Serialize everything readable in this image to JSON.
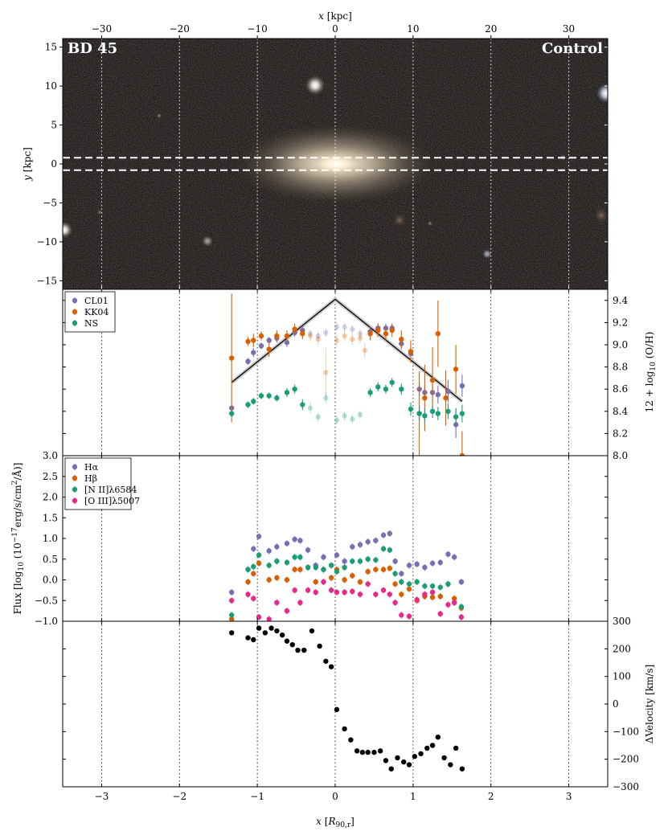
{
  "image_panel": {
    "left_label": "BD 45",
    "right_label": "Control",
    "top_axis_label": "x [kpc]",
    "left_axis_label": "y [kpc]",
    "top_ticks": [
      "−30",
      "−20",
      "−10",
      "0",
      "10",
      "20",
      "30"
    ],
    "top_tick_values": [
      -30,
      -20,
      -10,
      0,
      10,
      20,
      30
    ],
    "left_ticks": [
      "15",
      "10",
      "5",
      "0",
      "−5",
      "−10",
      "−15"
    ],
    "left_tick_values": [
      15,
      10,
      5,
      0,
      -5,
      -10,
      -15
    ],
    "xlim_kpc": [
      -35,
      35
    ],
    "ylim_kpc": [
      -16.1,
      16.1
    ],
    "slit_y_kpc": [
      0.8,
      -0.8
    ]
  },
  "chart_data": [
    {
      "type": "scatter",
      "panel": "metallicity",
      "ylabel": "12 + log10(O/H)",
      "ylim": [
        8.0,
        9.5
      ],
      "yticks": [
        8.0,
        8.2,
        8.4,
        8.6,
        8.8,
        9.0,
        9.2,
        9.4
      ],
      "ytick_labels": [
        "8.0",
        "8.2",
        "8.4",
        "8.6",
        "8.8",
        "9.0",
        "9.2",
        "9.4"
      ],
      "series": [
        {
          "name": "CL01",
          "color": "#7570b3",
          "x": [
            -1.33,
            -1.12,
            -1.05,
            -0.95,
            -0.85,
            -0.75,
            -0.62,
            -0.52,
            -0.42,
            -0.32,
            -0.22,
            -0.12,
            0.02,
            0.12,
            0.22,
            0.32,
            0.45,
            0.55,
            0.65,
            0.73,
            0.85,
            0.97,
            1.08,
            1.15,
            1.25,
            1.32,
            1.45,
            1.55,
            1.63
          ],
          "y": [
            8.43,
            8.85,
            8.93,
            8.99,
            9.04,
            9.06,
            9.02,
            9.11,
            9.13,
            9.1,
            9.08,
            9.11,
            9.16,
            9.16,
            9.14,
            9.1,
            9.12,
            9.15,
            9.15,
            9.15,
            9.01,
            8.92,
            8.6,
            8.57,
            8.57,
            8.55,
            8.58,
            8.28,
            8.63
          ],
          "err": [
            0.03,
            0.03,
            0.04,
            0.03,
            0.03,
            0.04,
            0.04,
            0.04,
            0.04,
            0.03,
            0.04,
            0.04,
            0.04,
            0.04,
            0.04,
            0.04,
            0.04,
            0.04,
            0.04,
            0.04,
            0.05,
            0.05,
            0.06,
            0.07,
            0.08,
            0.08,
            0.1,
            0.12,
            0.1
          ]
        },
        {
          "name": "KK04",
          "color": "#d95f02",
          "x": [
            -1.33,
            -1.12,
            -1.05,
            -0.95,
            -0.85,
            -0.75,
            -0.62,
            -0.52,
            -0.42,
            -0.32,
            -0.22,
            -0.12,
            0.02,
            0.12,
            0.22,
            0.32,
            0.38,
            0.45,
            0.55,
            0.65,
            0.73,
            0.85,
            0.97,
            1.08,
            1.15,
            1.25,
            1.32,
            1.42,
            1.55,
            1.63
          ],
          "y": [
            8.88,
            9.03,
            9.04,
            9.08,
            8.96,
            9.08,
            9.08,
            9.14,
            9.1,
            9.08,
            9.05,
            8.75,
            9.04,
            9.08,
            9.05,
            9.06,
            8.95,
            9.1,
            9.13,
            9.1,
            9.13,
            9.05,
            8.94,
            8.38,
            8.52,
            8.68,
            9.1,
            8.52,
            8.78,
            8.0
          ],
          "err": [
            0.58,
            0.04,
            0.06,
            0.04,
            0.07,
            0.05,
            0.05,
            0.05,
            0.05,
            0.05,
            0.05,
            0.22,
            0.05,
            0.05,
            0.05,
            0.05,
            0.07,
            0.06,
            0.06,
            0.06,
            0.06,
            0.08,
            0.1,
            0.38,
            0.3,
            0.3,
            0.3,
            0.25,
            0.22,
            0.22
          ]
        },
        {
          "name": "NS",
          "color": "#1b9e77",
          "x": [
            -1.33,
            -1.12,
            -1.05,
            -0.95,
            -0.85,
            -0.75,
            -0.62,
            -0.52,
            -0.42,
            -0.32,
            -0.22,
            -0.12,
            0.02,
            0.12,
            0.22,
            0.32,
            0.45,
            0.55,
            0.65,
            0.73,
            0.85,
            0.97,
            1.08,
            1.15,
            1.25,
            1.32,
            1.45,
            1.55,
            1.63
          ],
          "y": [
            8.38,
            8.46,
            8.49,
            8.54,
            8.54,
            8.52,
            8.57,
            8.6,
            8.46,
            8.43,
            8.35,
            8.52,
            8.32,
            8.36,
            8.33,
            8.37,
            8.57,
            8.62,
            8.6,
            8.66,
            8.6,
            8.42,
            8.38,
            8.36,
            8.4,
            8.38,
            8.4,
            8.35,
            8.38
          ],
          "err": [
            0.03,
            0.03,
            0.03,
            0.03,
            0.03,
            0.03,
            0.04,
            0.04,
            0.05,
            0.05,
            0.04,
            0.05,
            0.04,
            0.04,
            0.04,
            0.04,
            0.04,
            0.04,
            0.04,
            0.04,
            0.05,
            0.06,
            0.07,
            0.07,
            0.06,
            0.06,
            0.07,
            0.08,
            0.08
          ]
        }
      ],
      "model_line": {
        "x": [
          -1.33,
          0.0,
          1.63
        ],
        "y": [
          8.66,
          9.41,
          8.49
        ]
      }
    },
    {
      "type": "scatter",
      "panel": "flux",
      "ylabel": "Flux [log10 (10^-17 erg/s/cm^2/Å)]",
      "ylim": [
        -1.0,
        3.0
      ],
      "yticks": [
        -1.0,
        -0.5,
        0.0,
        0.5,
        1.0,
        1.5,
        2.0,
        2.5,
        3.0
      ],
      "ytick_labels": [
        "−1.0",
        "−0.5",
        "0.0",
        "0.5",
        "1.0",
        "1.5",
        "2.0",
        "2.5",
        "3.0"
      ],
      "series": [
        {
          "name": "Hα",
          "color": "#7570b3",
          "x": [
            -1.33,
            -1.12,
            -1.05,
            -0.98,
            -0.85,
            -0.75,
            -0.62,
            -0.52,
            -0.45,
            -0.35,
            -0.25,
            -0.15,
            -0.05,
            0.02,
            0.12,
            0.22,
            0.32,
            0.42,
            0.52,
            0.62,
            0.7,
            0.77,
            0.85,
            0.95,
            1.05,
            1.15,
            1.25,
            1.35,
            1.45,
            1.53,
            1.62
          ],
          "y": [
            -0.3,
            0.25,
            0.75,
            1.05,
            0.7,
            0.8,
            0.88,
            0.98,
            0.95,
            0.72,
            0.35,
            0.55,
            0.35,
            0.6,
            0.45,
            0.8,
            0.85,
            0.92,
            0.95,
            1.08,
            1.12,
            0.45,
            0.15,
            0.35,
            0.38,
            0.3,
            0.4,
            0.42,
            0.62,
            0.55,
            -0.05
          ]
        },
        {
          "name": "Hβ",
          "color": "#d95f02",
          "x": [
            -1.33,
            -1.12,
            -1.05,
            -0.98,
            -0.85,
            -0.75,
            -0.62,
            -0.52,
            -0.45,
            -0.35,
            -0.25,
            -0.15,
            -0.05,
            0.02,
            0.12,
            0.22,
            0.32,
            0.42,
            0.52,
            0.62,
            0.7,
            0.77,
            0.85,
            0.95,
            1.05,
            1.15,
            1.25,
            1.35,
            1.45,
            1.53,
            1.62
          ],
          "y": [
            -0.95,
            -0.05,
            0.15,
            0.4,
            0.0,
            0.05,
            0.0,
            0.25,
            0.25,
            0.3,
            -0.05,
            0.25,
            0.05,
            0.25,
            0.0,
            0.1,
            -0.05,
            0.2,
            0.25,
            0.25,
            0.28,
            -0.1,
            -0.35,
            -0.22,
            -0.5,
            -0.4,
            -0.42,
            -0.4,
            -0.1,
            -0.45,
            -0.68
          ]
        },
        {
          "name": "[N II]λ6584",
          "color": "#1b9e77",
          "x": [
            -1.33,
            -1.12,
            -1.05,
            -0.98,
            -0.85,
            -0.75,
            -0.62,
            -0.52,
            -0.45,
            -0.35,
            -0.25,
            -0.15,
            -0.05,
            0.02,
            0.12,
            0.22,
            0.32,
            0.42,
            0.52,
            0.62,
            0.7,
            0.77,
            0.85,
            0.95,
            1.05,
            1.15,
            1.25,
            1.35,
            1.45,
            1.53,
            1.62
          ],
          "y": [
            -0.85,
            0.25,
            0.32,
            0.6,
            0.35,
            0.45,
            0.42,
            0.55,
            0.55,
            0.3,
            0.3,
            0.25,
            0.35,
            0.2,
            0.3,
            0.45,
            0.45,
            0.5,
            0.48,
            0.75,
            0.72,
            0.15,
            -0.05,
            -0.1,
            -0.05,
            -0.15,
            -0.15,
            -0.18,
            -0.1,
            -0.55,
            -0.65
          ]
        },
        {
          "name": "[O III]λ5007",
          "color": "#e7298a",
          "x": [
            -1.33,
            -1.12,
            -1.05,
            -0.98,
            -0.85,
            -0.75,
            -0.62,
            -0.52,
            -0.45,
            -0.35,
            -0.25,
            -0.15,
            -0.05,
            0.02,
            0.12,
            0.22,
            0.32,
            0.42,
            0.52,
            0.62,
            0.7,
            0.77,
            0.85,
            0.95,
            1.05,
            1.15,
            1.25,
            1.35,
            1.45,
            1.53,
            1.62
          ],
          "y": [
            -0.5,
            -0.35,
            -0.45,
            -0.9,
            -0.95,
            -0.55,
            -0.75,
            -0.25,
            -0.55,
            -0.25,
            -0.3,
            -0.05,
            -0.25,
            -0.3,
            -0.3,
            -0.28,
            -0.35,
            -0.1,
            -0.35,
            -0.25,
            -0.35,
            -0.55,
            -0.85,
            -0.88,
            -0.48,
            -0.35,
            -0.3,
            -0.82,
            -0.6,
            -0.55,
            -0.9
          ]
        }
      ]
    },
    {
      "type": "scatter",
      "panel": "velocity",
      "xlabel": "x [R90,r]",
      "ylabel": "ΔVelocity [km/s]",
      "xlim": [
        -3.5,
        3.5
      ],
      "xticks": [
        -3,
        -2,
        -1,
        0,
        1,
        2,
        3
      ],
      "xtick_labels": [
        "−3",
        "−2",
        "−1",
        "0",
        "1",
        "2",
        "3"
      ],
      "ylim": [
        -300,
        300
      ],
      "yticks": [
        -300,
        -200,
        -100,
        0,
        100,
        200,
        300
      ],
      "ytick_labels": [
        "−300",
        "−200",
        "−100",
        "0",
        "100",
        "200",
        "300"
      ],
      "series": [
        {
          "name": "",
          "color": "#000000",
          "x": [
            -1.33,
            -1.12,
            -1.05,
            -0.98,
            -0.9,
            -0.82,
            -0.75,
            -0.68,
            -0.62,
            -0.55,
            -0.48,
            -0.4,
            -0.3,
            -0.2,
            -0.12,
            -0.05,
            0.02,
            0.12,
            0.2,
            0.28,
            0.35,
            0.42,
            0.5,
            0.58,
            0.65,
            0.72,
            0.8,
            0.88,
            0.95,
            1.02,
            1.1,
            1.18,
            1.25,
            1.32,
            1.4,
            1.48,
            1.55,
            1.63
          ],
          "y": [
            258,
            240,
            233,
            275,
            258,
            275,
            265,
            250,
            228,
            215,
            195,
            195,
            265,
            210,
            155,
            135,
            -20,
            -90,
            -130,
            -170,
            -175,
            -175,
            -175,
            -170,
            -205,
            -235,
            -195,
            -210,
            -220,
            -190,
            -180,
            -160,
            -150,
            -120,
            -195,
            -220,
            -160,
            -235
          ]
        }
      ]
    }
  ]
}
